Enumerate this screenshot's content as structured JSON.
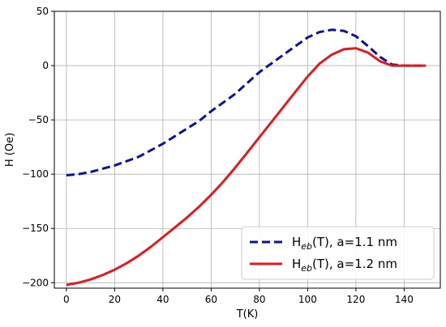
{
  "chart_data": {
    "type": "line",
    "xlabel": "T(K)",
    "ylabel": "H (Oe)",
    "xlim": [
      -5,
      155
    ],
    "ylim": [
      -205,
      50
    ],
    "xticks": [
      0,
      20,
      40,
      60,
      80,
      100,
      120,
      140
    ],
    "yticks": [
      -200,
      -150,
      -100,
      -50,
      0,
      50
    ],
    "grid": true,
    "legend_position": "bottom-right",
    "series": [
      {
        "name_main": "H",
        "name_sub": "eb",
        "name_rest": "(T), a=1.1 nm",
        "color": "#0a12a0",
        "style": "dashed",
        "x": [
          0,
          5,
          10,
          15,
          20,
          25,
          30,
          35,
          40,
          45,
          50,
          55,
          60,
          65,
          70,
          75,
          80,
          85,
          90,
          95,
          100,
          105,
          110,
          115,
          120,
          125,
          130,
          135,
          140,
          145,
          149
        ],
        "y": [
          -101,
          -100,
          -98,
          -95,
          -92,
          -88,
          -84,
          -78,
          -72,
          -65,
          -58,
          -51,
          -42,
          -34,
          -26,
          -16,
          -6,
          2,
          10,
          18,
          26,
          31,
          33,
          32,
          27,
          18,
          8,
          1,
          0,
          0,
          0
        ]
      },
      {
        "name_main": "H",
        "name_sub": "eb",
        "name_rest": "(T), a=1.2 nm",
        "color": "#e31a1c",
        "style": "solid",
        "x": [
          0,
          5,
          10,
          15,
          20,
          25,
          30,
          35,
          40,
          45,
          50,
          55,
          60,
          65,
          70,
          75,
          80,
          85,
          90,
          95,
          100,
          105,
          110,
          115,
          120,
          125,
          130,
          135,
          140,
          145,
          149
        ],
        "y": [
          -202,
          -200,
          -197,
          -193,
          -188,
          -182,
          -175,
          -167,
          -158,
          -149,
          -140,
          -130,
          -119,
          -107,
          -94,
          -80,
          -66,
          -52,
          -38,
          -24,
          -10,
          2,
          10,
          15,
          16,
          12,
          4,
          0,
          0,
          0,
          0
        ]
      }
    ]
  }
}
